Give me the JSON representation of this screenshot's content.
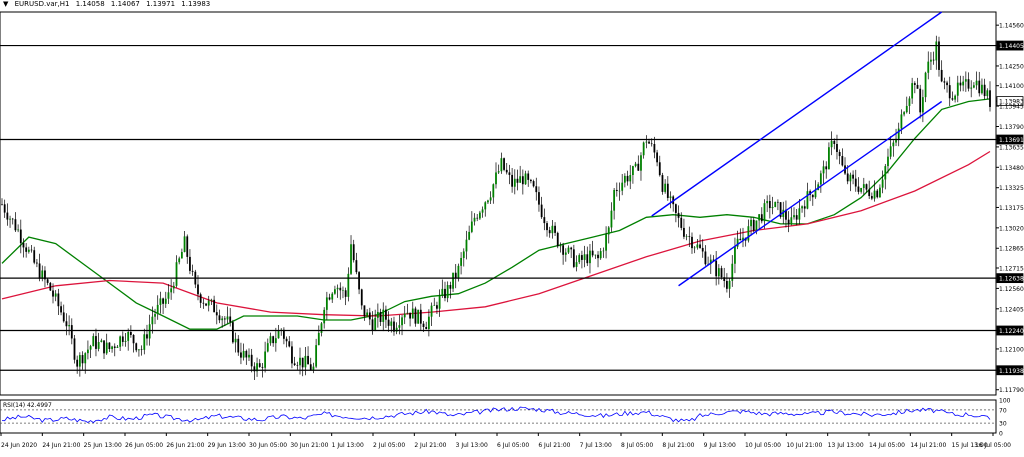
{
  "header": {
    "menu_arrow": "▼",
    "symbol": "EURUSD.var,H1",
    "open": "1.14058",
    "high": "1.14067",
    "low": "1.13971",
    "close": "1.13983"
  },
  "chart_data": [
    {
      "type": "candlestick",
      "symbol": "EURUSD.var",
      "timeframe": "H1",
      "ylim": [
        1.1175,
        1.1466
      ],
      "y_ticks": [
        "1.14560",
        "1.14405",
        "1.14250",
        "1.14100",
        "1.13983",
        "1.13945",
        "1.13790",
        "1.13691",
        "1.13635",
        "1.13480",
        "1.13325",
        "1.13175",
        "1.13020",
        "1.12865",
        "1.12715",
        "1.12638",
        "1.12560",
        "1.12405",
        "1.12240",
        "1.12100",
        "1.11938",
        "1.11790"
      ],
      "highlighted_prices": [
        "1.14405",
        "1.13691",
        "1.12638",
        "1.12240",
        "1.11938"
      ],
      "current_price": "1.13983",
      "x_ticks": [
        "24 Jun 2020",
        "24 Jun 21:00",
        "25 Jun 13:00",
        "26 Jun 05:00",
        "26 Jun 21:00",
        "29 Jun 13:00",
        "30 Jun 05:00",
        "30 Jun 21:00",
        "1 Jul 13:00",
        "2 Jul 05:00",
        "2 Jul 21:00",
        "3 Jul 13:00",
        "6 Jul 05:00",
        "6 Jul 21:00",
        "7 Jul 13:00",
        "8 Jul 05:00",
        "8 Jul 21:00",
        "9 Jul 13:00",
        "10 Jul 05:00",
        "10 Jul 21:00",
        "13 Jul 13:00",
        "14 Jul 05:00",
        "14 Jul 21:00",
        "15 Jul 13:00",
        "16 Jul 05:00"
      ],
      "horizontal_levels": [
        1.14405,
        1.13691,
        1.12638,
        1.1224,
        1.11938
      ],
      "channel_lines": [
        {
          "color": "#0000ff",
          "from": [
            121,
            1.1311
          ],
          "to": [
            175,
            1.1466
          ]
        },
        {
          "color": "#0000ff",
          "from": [
            126,
            1.1258
          ],
          "to": [
            175,
            1.1398
          ]
        }
      ],
      "price_path": [
        [
          0,
          1.132
        ],
        [
          3,
          1.13
        ],
        [
          6,
          1.1275
        ],
        [
          9,
          1.1255
        ],
        [
          12,
          1.123
        ],
        [
          14,
          1.12
        ],
        [
          17,
          1.1215
        ],
        [
          20,
          1.121
        ],
        [
          23,
          1.1222
        ],
        [
          26,
          1.121
        ],
        [
          28,
          1.1235
        ],
        [
          31,
          1.125
        ],
        [
          34,
          1.129
        ],
        [
          36,
          1.1255
        ],
        [
          38,
          1.1245
        ],
        [
          40,
          1.124
        ],
        [
          42,
          1.123
        ],
        [
          44,
          1.121
        ],
        [
          46,
          1.12
        ],
        [
          48,
          1.1195
        ],
        [
          50,
          1.1215
        ],
        [
          52,
          1.1225
        ],
        [
          54,
          1.1205
        ],
        [
          56,
          1.12
        ],
        [
          58,
          1.1195
        ],
        [
          60,
          1.1245
        ],
        [
          62,
          1.126
        ],
        [
          64,
          1.125
        ],
        [
          65,
          1.129
        ],
        [
          67,
          1.124
        ],
        [
          69,
          1.123
        ],
        [
          71,
          1.1235
        ],
        [
          73,
          1.1228
        ],
        [
          75,
          1.124
        ],
        [
          77,
          1.1235
        ],
        [
          79,
          1.123
        ],
        [
          81,
          1.1245
        ],
        [
          83,
          1.1255
        ],
        [
          85,
          1.127
        ],
        [
          88,
          1.131
        ],
        [
          91,
          1.133
        ],
        [
          93,
          1.135
        ],
        [
          95,
          1.1335
        ],
        [
          97,
          1.134
        ],
        [
          99,
          1.133
        ],
        [
          101,
          1.131
        ],
        [
          103,
          1.1295
        ],
        [
          105,
          1.1285
        ],
        [
          107,
          1.1275
        ],
        [
          109,
          1.128
        ],
        [
          111,
          1.1278
        ],
        [
          113,
          1.13
        ],
        [
          114,
          1.133
        ],
        [
          116,
          1.134
        ],
        [
          118,
          1.1345
        ],
        [
          120,
          1.137
        ],
        [
          122,
          1.1355
        ],
        [
          123,
          1.1335
        ],
        [
          125,
          1.1315
        ],
        [
          127,
          1.13
        ],
        [
          129,
          1.129
        ],
        [
          131,
          1.128
        ],
        [
          133,
          1.127
        ],
        [
          135,
          1.126
        ],
        [
          137,
          1.129
        ],
        [
          139,
          1.13
        ],
        [
          141,
          1.131
        ],
        [
          143,
          1.132
        ],
        [
          145,
          1.1315
        ],
        [
          147,
          1.1305
        ],
        [
          149,
          1.132
        ],
        [
          151,
          1.133
        ],
        [
          153,
          1.1345
        ],
        [
          155,
          1.137
        ],
        [
          157,
          1.134
        ],
        [
          159,
          1.1335
        ],
        [
          161,
          1.133
        ],
        [
          163,
          1.133
        ],
        [
          165,
          1.1355
        ],
        [
          167,
          1.1375
        ],
        [
          168,
          1.1395
        ],
        [
          170,
          1.1415
        ],
        [
          171,
          1.139
        ],
        [
          172,
          1.142
        ],
        [
          174,
          1.144
        ],
        [
          175,
          1.141
        ],
        [
          177,
          1.1405
        ],
        [
          179,
          1.1408
        ],
        [
          181,
          1.1415
        ],
        [
          183,
          1.1405
        ],
        [
          184,
          1.1398
        ]
      ],
      "series": [
        {
          "color": "#008000",
          "points": [
            [
              0,
              1.1275
            ],
            [
              5,
              1.1295
            ],
            [
              10,
              1.129
            ],
            [
              15,
              1.1275
            ],
            [
              20,
              1.126
            ],
            [
              25,
              1.1245
            ],
            [
              30,
              1.1235
            ],
            [
              35,
              1.1225
            ],
            [
              40,
              1.1225
            ],
            [
              45,
              1.1235
            ],
            [
              50,
              1.1235
            ],
            [
              55,
              1.1235
            ],
            [
              60,
              1.1232
            ],
            [
              65,
              1.1232
            ],
            [
              70,
              1.1236
            ],
            [
              75,
              1.1246
            ],
            [
              80,
              1.125
            ],
            [
              85,
              1.1252
            ],
            [
              90,
              1.126
            ],
            [
              95,
              1.1272
            ],
            [
              100,
              1.1285
            ],
            [
              105,
              1.129
            ],
            [
              110,
              1.1295
            ],
            [
              115,
              1.13
            ],
            [
              120,
              1.131
            ],
            [
              125,
              1.1312
            ],
            [
              130,
              1.131
            ],
            [
              135,
              1.1312
            ],
            [
              140,
              1.131
            ],
            [
              145,
              1.1305
            ],
            [
              150,
              1.1305
            ],
            [
              155,
              1.1312
            ],
            [
              160,
              1.1325
            ],
            [
              165,
              1.1345
            ],
            [
              170,
              1.137
            ],
            [
              175,
              1.1392
            ],
            [
              180,
              1.1398
            ],
            [
              184,
              1.14
            ]
          ]
        },
        {
          "color": "#dc143c",
          "points": [
            [
              0,
              1.1248
            ],
            [
              10,
              1.1258
            ],
            [
              20,
              1.1262
            ],
            [
              30,
              1.126
            ],
            [
              40,
              1.1245
            ],
            [
              50,
              1.1238
            ],
            [
              60,
              1.1236
            ],
            [
              70,
              1.1235
            ],
            [
              80,
              1.1238
            ],
            [
              90,
              1.1242
            ],
            [
              100,
              1.1252
            ],
            [
              110,
              1.1266
            ],
            [
              120,
              1.128
            ],
            [
              130,
              1.1292
            ],
            [
              140,
              1.13
            ],
            [
              150,
              1.1305
            ],
            [
              160,
              1.1315
            ],
            [
              170,
              1.133
            ],
            [
              180,
              1.135
            ],
            [
              184,
              1.136
            ]
          ]
        }
      ]
    },
    {
      "type": "line",
      "label": "RSI(14) 42.4997",
      "ylim": [
        0,
        100
      ],
      "y_ticks": [
        "100",
        "70",
        "30",
        "0"
      ],
      "levels": [
        70,
        30
      ],
      "series": [
        {
          "color": "#0000ff",
          "points": [
            [
              0,
              40
            ],
            [
              4,
              50
            ],
            [
              8,
              38
            ],
            [
              12,
              44
            ],
            [
              16,
              35
            ],
            [
              20,
              48
            ],
            [
              24,
              42
            ],
            [
              28,
              55
            ],
            [
              32,
              45
            ],
            [
              36,
              38
            ],
            [
              40,
              52
            ],
            [
              44,
              46
            ],
            [
              48,
              40
            ],
            [
              52,
              50
            ],
            [
              56,
              44
            ],
            [
              60,
              58
            ],
            [
              64,
              50
            ],
            [
              68,
              46
            ],
            [
              72,
              52
            ],
            [
              76,
              60
            ],
            [
              80,
              66
            ],
            [
              84,
              52
            ],
            [
              88,
              62
            ],
            [
              92,
              70
            ],
            [
              96,
              75
            ],
            [
              100,
              72
            ],
            [
              104,
              62
            ],
            [
              108,
              58
            ],
            [
              112,
              52
            ],
            [
              116,
              60
            ],
            [
              120,
              64
            ],
            [
              124,
              45
            ],
            [
              126,
              38
            ],
            [
              128,
              35
            ],
            [
              130,
              52
            ],
            [
              134,
              62
            ],
            [
              138,
              66
            ],
            [
              142,
              58
            ],
            [
              146,
              60
            ],
            [
              150,
              56
            ],
            [
              154,
              64
            ],
            [
              158,
              60
            ],
            [
              162,
              55
            ],
            [
              166,
              60
            ],
            [
              170,
              70
            ],
            [
              174,
              68
            ],
            [
              176,
              60
            ],
            [
              178,
              55
            ],
            [
              180,
              58
            ],
            [
              184,
              43
            ]
          ]
        }
      ]
    }
  ]
}
